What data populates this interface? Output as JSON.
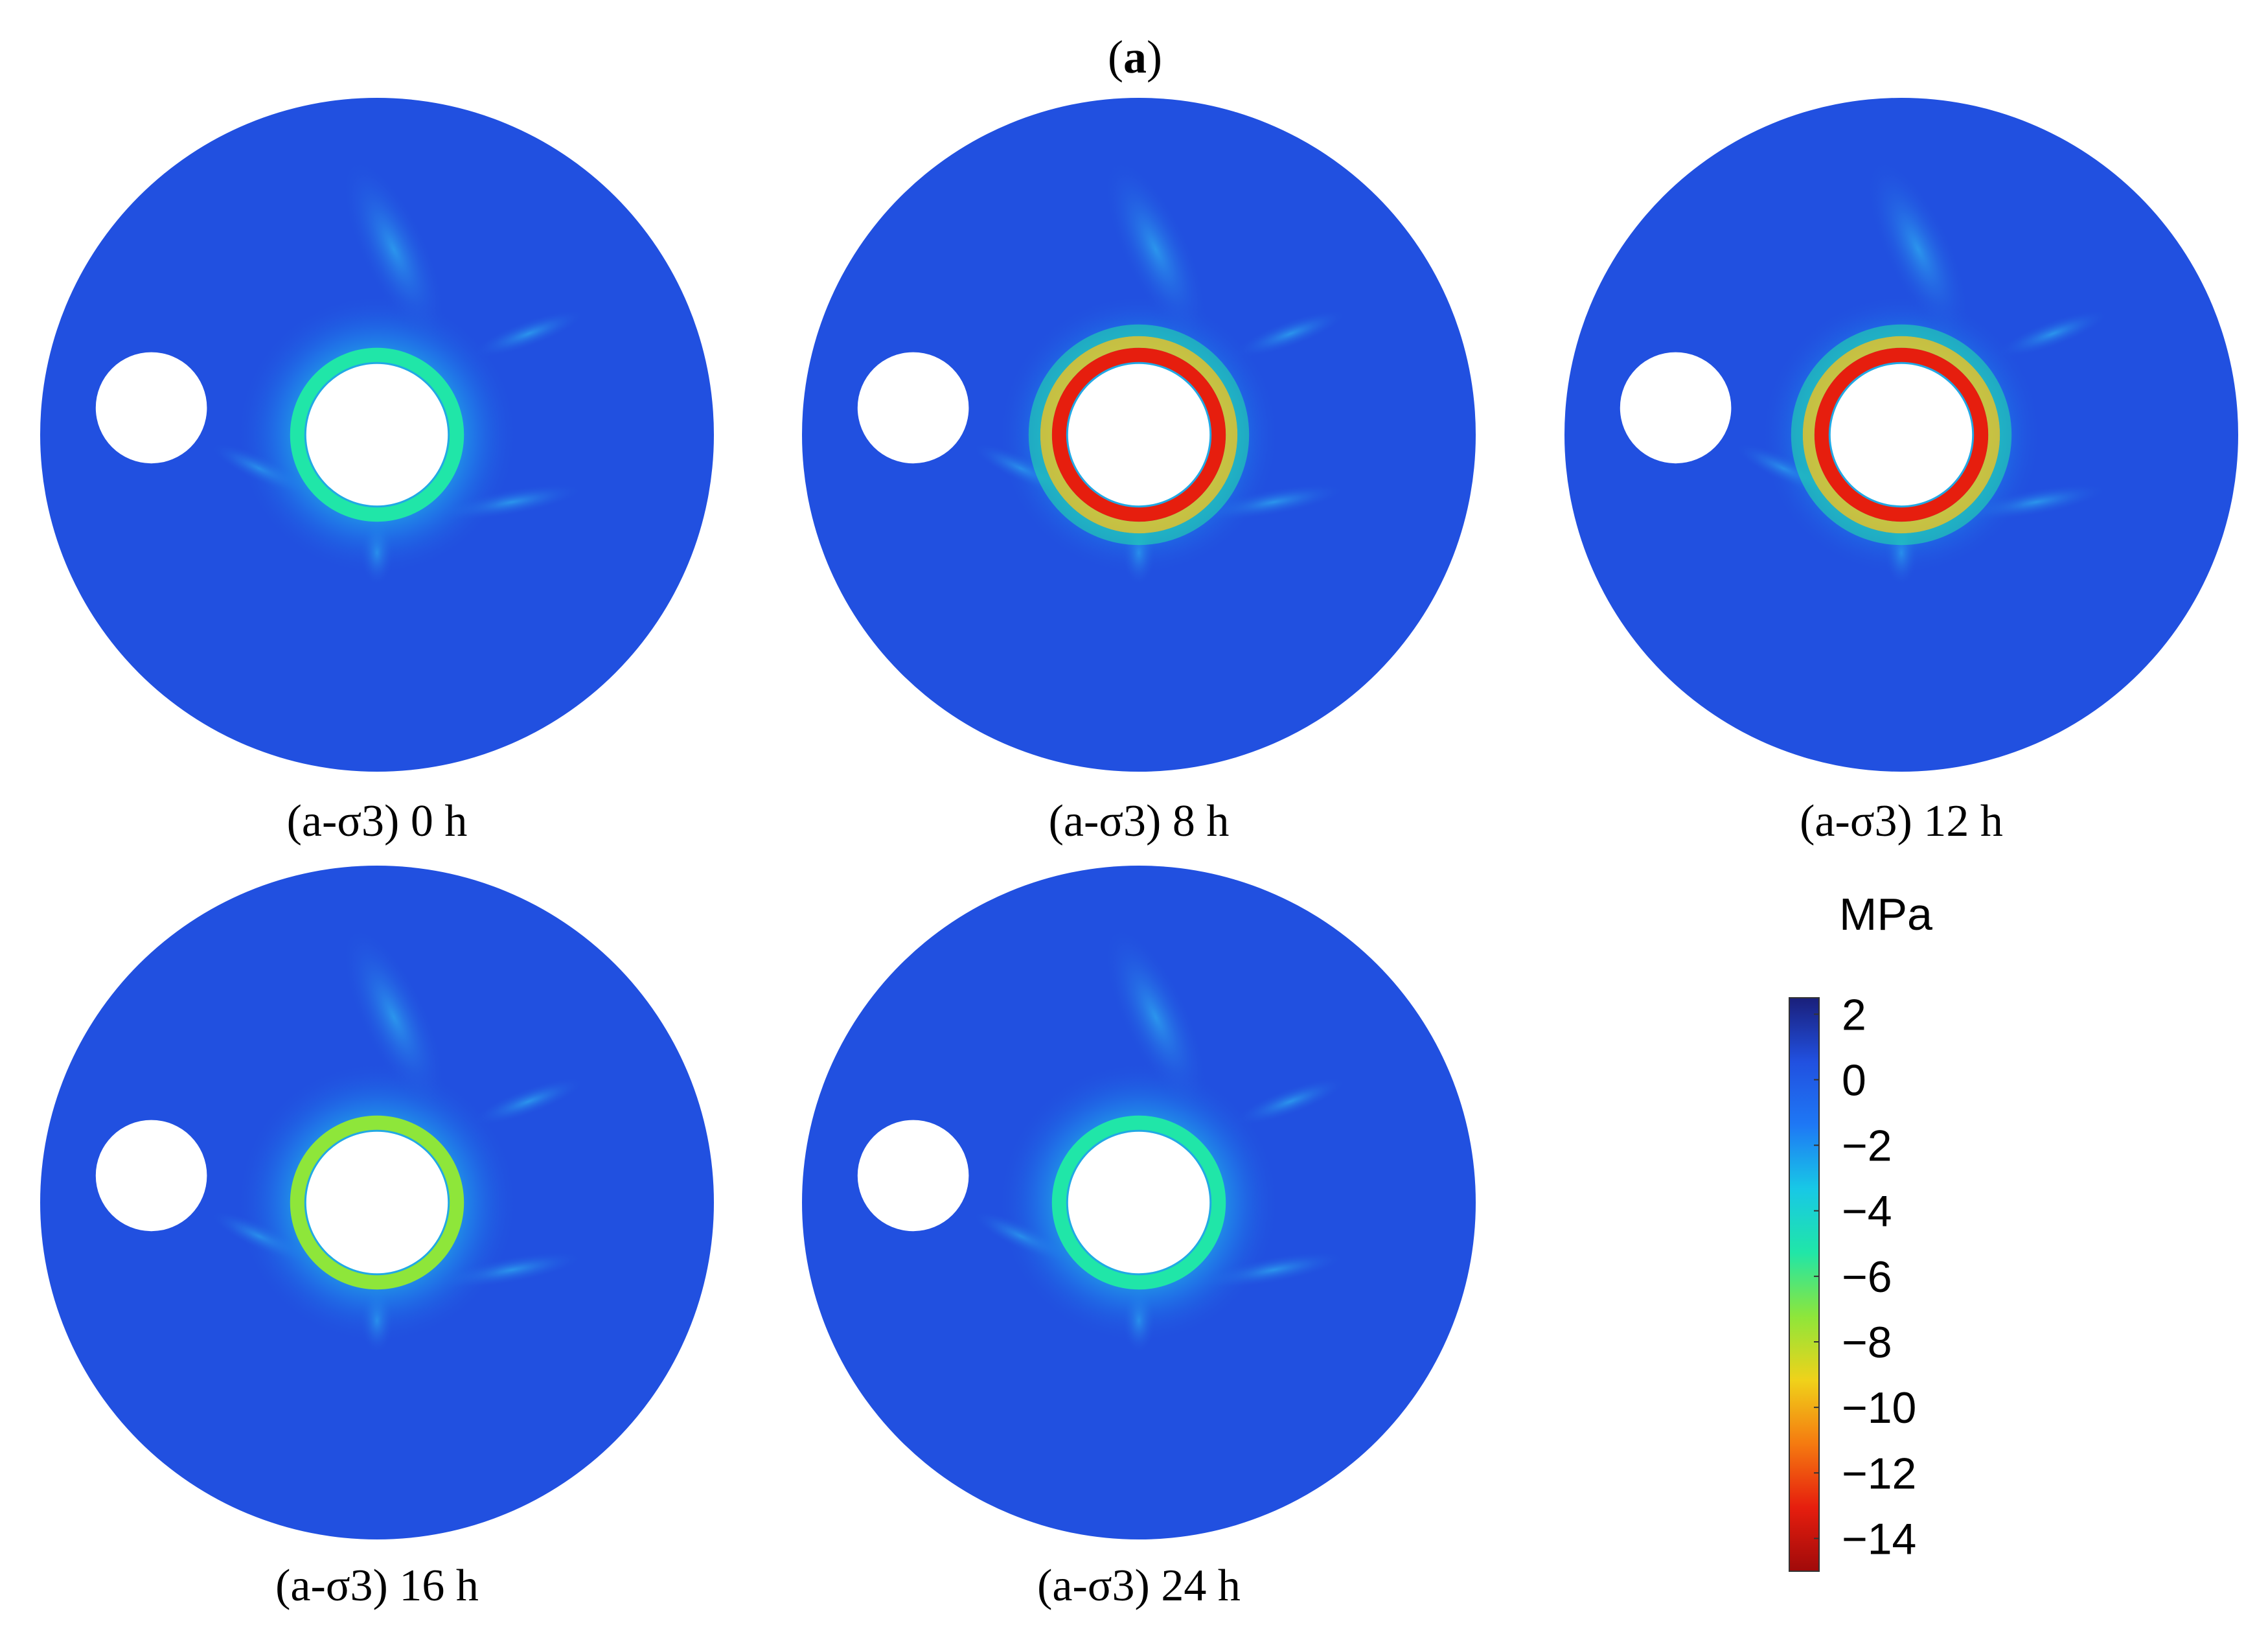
{
  "figure": {
    "label_prefix": "(",
    "label_letter": "a",
    "label_suffix": ")"
  },
  "panels": [
    {
      "caption": "(a-σ3) 0 h",
      "time_h": 0,
      "ring_peak_mpa": -6
    },
    {
      "caption": "(a-σ3) 8 h",
      "time_h": 8,
      "ring_peak_mpa": -14
    },
    {
      "caption": "(a-σ3) 12 h",
      "time_h": 12,
      "ring_peak_mpa": -14
    },
    {
      "caption": "(a-σ3) 16 h",
      "time_h": 16,
      "ring_peak_mpa": -8
    },
    {
      "caption": "(a-σ3) 24 h",
      "time_h": 24,
      "ring_peak_mpa": -6
    }
  ],
  "colorbar": {
    "unit": "MPa",
    "min": -15,
    "max": 2.5,
    "ticks": [
      "2",
      "0",
      "−2",
      "−4",
      "−6",
      "−8",
      "−10",
      "−12",
      "−14"
    ],
    "tick_values": [
      2,
      0,
      -2,
      -4,
      -6,
      -8,
      -10,
      -12,
      -14
    ],
    "colors": [
      "#1a1f7a",
      "#2150e0",
      "#1e78f5",
      "#18c8e6",
      "#20e6a8",
      "#8ee63a",
      "#f0d21a",
      "#f57a10",
      "#e61e0e",
      "#a00a0a"
    ],
    "background_color": "#2150e0"
  }
}
